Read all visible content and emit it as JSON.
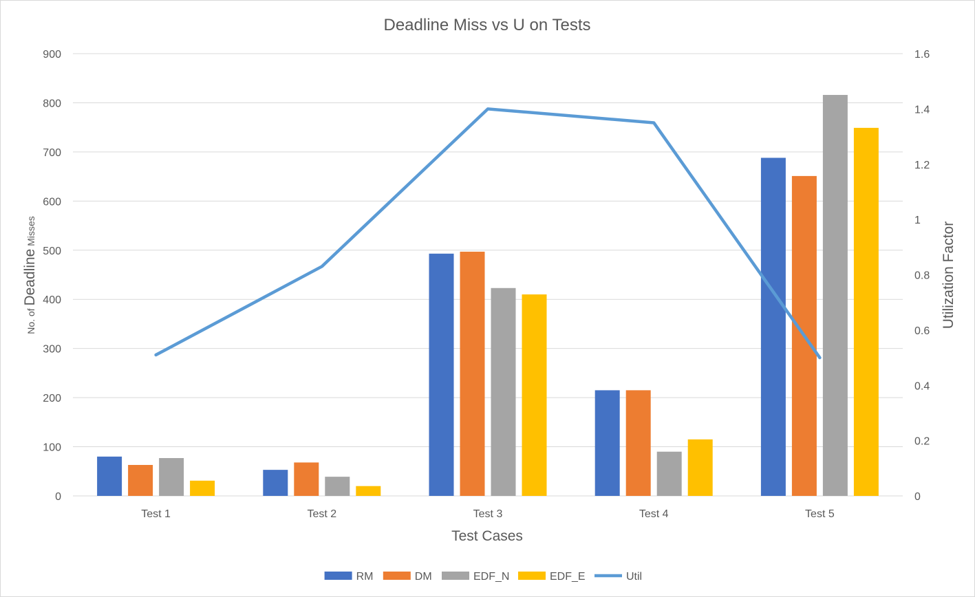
{
  "chart_data": {
    "type": "bar",
    "title": "Deadline Miss vs U on Tests",
    "xlabel": "Test Cases",
    "ylabel_prefix": "No. of ",
    "ylabel_main": "Deadline",
    "ylabel_suffix": " Misses",
    "y2label": "Utilization Factor",
    "categories": [
      "Test 1",
      "Test 2",
      "Test 3",
      "Test 4",
      "Test 5"
    ],
    "ylim": [
      0,
      900
    ],
    "yticks": [
      0,
      100,
      200,
      300,
      400,
      500,
      600,
      700,
      800,
      900
    ],
    "y2lim": [
      0,
      1.6
    ],
    "y2ticks": [
      "0",
      "0.2",
      "0.4",
      "0.6",
      "0.8",
      "1",
      "1.2",
      "1.4",
      "1.6"
    ],
    "grid": true,
    "legend_position": "bottom",
    "series": [
      {
        "name": "RM",
        "kind": "bar",
        "axis": "left",
        "color": "#4472c4",
        "values": [
          80,
          53,
          493,
          215,
          688
        ]
      },
      {
        "name": "DM",
        "kind": "bar",
        "axis": "left",
        "color": "#ed7d31",
        "values": [
          63,
          68,
          497,
          215,
          651
        ]
      },
      {
        "name": "EDF_N",
        "kind": "bar",
        "axis": "left",
        "color": "#a5a5a5",
        "values": [
          77,
          39,
          423,
          90,
          816
        ]
      },
      {
        "name": "EDF_E",
        "kind": "bar",
        "axis": "left",
        "color": "#ffc000",
        "values": [
          31,
          20,
          410,
          115,
          749
        ]
      },
      {
        "name": "Util",
        "kind": "line",
        "axis": "right",
        "color": "#5b9bd5",
        "values": [
          0.51,
          0.83,
          1.4,
          1.35,
          0.5
        ]
      }
    ]
  }
}
